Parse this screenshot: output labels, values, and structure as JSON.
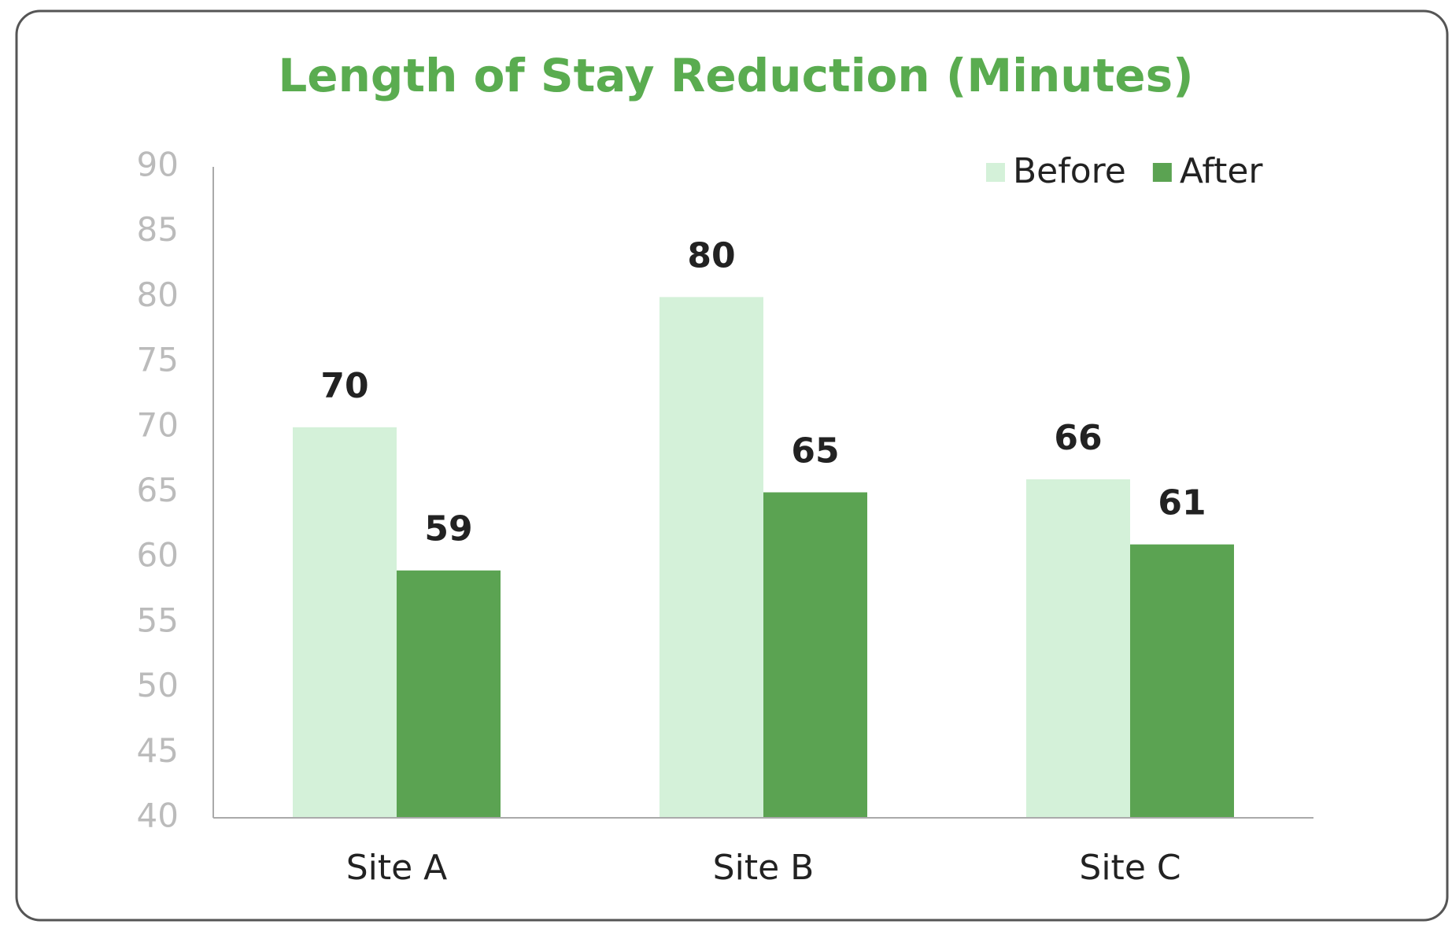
{
  "chart_data": {
    "type": "bar",
    "title": "Length of Stay Reduction (Minutes)",
    "categories": [
      "Site A",
      "Site B",
      "Site C"
    ],
    "series": [
      {
        "name": "Before",
        "color": "#d4f1d9",
        "values": [
          70,
          80,
          66
        ]
      },
      {
        "name": "After",
        "color": "#5ba352",
        "values": [
          59,
          65,
          61
        ]
      }
    ],
    "ylim": [
      40,
      90
    ],
    "yticks": [
      40,
      45,
      50,
      55,
      60,
      65,
      70,
      75,
      80,
      85,
      90
    ],
    "grid": false,
    "legend": "top-right"
  }
}
